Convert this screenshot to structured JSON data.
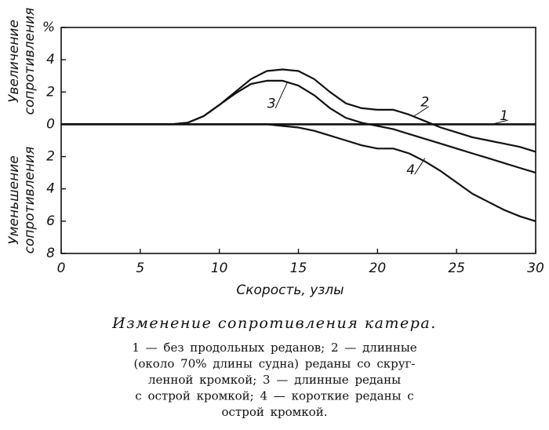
{
  "chart_data": {
    "type": "line",
    "title": "Изменение сопротивления катера.",
    "caption": [
      "1 — без продольных реданов; 2 — длинные",
      "(около 70% длины судна) реданы со скруг-",
      "ленной кромкой; 3 — длинные реданы",
      "с острой кромкой; 4 — короткие реданы с",
      "острой кромкой."
    ],
    "x_label": "Скорость, узлы",
    "y_label_upper": [
      "Увеличение",
      "сопротивления"
    ],
    "y_label_lower": [
      "Уменьшение",
      "сопротивления"
    ],
    "x": [
      0,
      1,
      2,
      3,
      4,
      5,
      6,
      7,
      8,
      9,
      10,
      11,
      12,
      13,
      14,
      15,
      16,
      17,
      18,
      19,
      20,
      21,
      22,
      23,
      24,
      25,
      26,
      27,
      28,
      29,
      30
    ],
    "series": [
      {
        "name": "1",
        "color": "#111111",
        "values": [
          0,
          0,
          0,
          0,
          0,
          0,
          0,
          0,
          0,
          0,
          0,
          0,
          0,
          0,
          0,
          0,
          0,
          0,
          0,
          0,
          0,
          0,
          0,
          0,
          0,
          0,
          0,
          0,
          0,
          0,
          0
        ]
      },
      {
        "name": "2",
        "color": "#111111",
        "values": [
          0,
          0,
          0,
          0,
          0,
          0,
          0,
          0,
          0.1,
          0.5,
          1.2,
          2.0,
          2.8,
          3.3,
          3.4,
          3.3,
          2.8,
          2.0,
          1.3,
          1.0,
          0.9,
          0.9,
          0.6,
          0.2,
          -0.2,
          -0.5,
          -0.8,
          -1.0,
          -1.2,
          -1.4,
          -1.7
        ]
      },
      {
        "name": "3",
        "color": "#111111",
        "values": [
          0,
          0,
          0,
          0,
          0,
          0,
          0,
          0,
          0.1,
          0.5,
          1.2,
          1.9,
          2.5,
          2.7,
          2.7,
          2.4,
          1.8,
          1.0,
          0.4,
          0.1,
          -0.1,
          -0.3,
          -0.6,
          -0.9,
          -1.2,
          -1.5,
          -1.8,
          -2.1,
          -2.4,
          -2.7,
          -3.0
        ]
      },
      {
        "name": "4",
        "color": "#111111",
        "values": [
          0,
          0,
          0,
          0,
          0,
          0,
          0,
          0,
          0,
          0,
          0,
          0,
          0,
          0,
          -0.1,
          -0.2,
          -0.4,
          -0.7,
          -1.0,
          -1.3,
          -1.5,
          -1.5,
          -1.8,
          -2.3,
          -2.9,
          -3.6,
          -4.3,
          -4.8,
          -5.3,
          -5.7,
          -6.0
        ]
      }
    ],
    "xlim": [
      0,
      30
    ],
    "xticks": [
      0,
      5,
      10,
      15,
      20,
      25,
      30
    ],
    "ylim": [
      -8,
      6
    ],
    "yticks": [
      {
        "value": 6,
        "label": "%"
      },
      4,
      2,
      0,
      {
        "value": -2,
        "label": "2"
      },
      {
        "value": -4,
        "label": "4"
      },
      {
        "value": -6,
        "label": "6"
      },
      {
        "value": -8,
        "label": "8"
      }
    ],
    "grid": false
  }
}
